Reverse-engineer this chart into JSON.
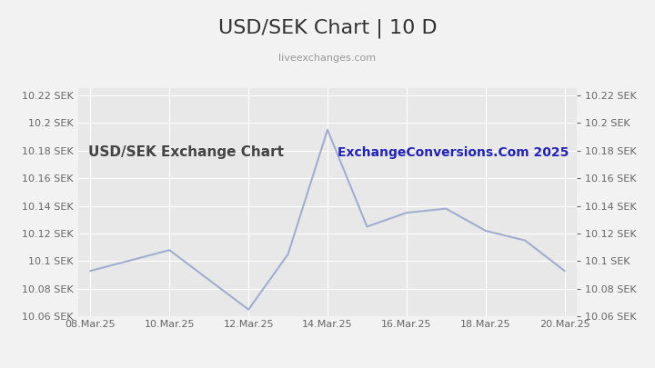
{
  "title": "USD/SEK Chart | 10 D",
  "subtitle": "liveexchanges.com",
  "watermark": "USD/SEK Exchange Chart",
  "watermark2": "ExchangeConversions.Com 2025",
  "x_labels": [
    "08.Mar.25",
    "10.Mar.25",
    "12.Mar.25",
    "14.Mar.25",
    "16.Mar.25",
    "18.Mar.25",
    "20.Mar.25"
  ],
  "x_values": [
    0,
    2,
    4,
    6,
    8,
    10,
    12
  ],
  "y_data_x": [
    0,
    2,
    4,
    5.0,
    6.0,
    7.0,
    8.0,
    9.0,
    10.0,
    11.0,
    12.0
  ],
  "y_data_y": [
    10.093,
    10.108,
    10.065,
    10.105,
    10.195,
    10.125,
    10.135,
    10.138,
    10.122,
    10.115,
    10.093
  ],
  "ylim": [
    10.06,
    10.225
  ],
  "yticks": [
    10.06,
    10.08,
    10.1,
    10.12,
    10.14,
    10.16,
    10.18,
    10.2,
    10.22
  ],
  "line_color": "#a0aed0",
  "bg_color": "#f2f2f2",
  "plot_bg": "#e8e8e8",
  "title_color": "#333333",
  "subtitle_color": "#999999",
  "watermark_color": "#444444",
  "watermark2_color": "#2222bb",
  "grid_color": "#ffffff",
  "tick_label_color": "#666666"
}
